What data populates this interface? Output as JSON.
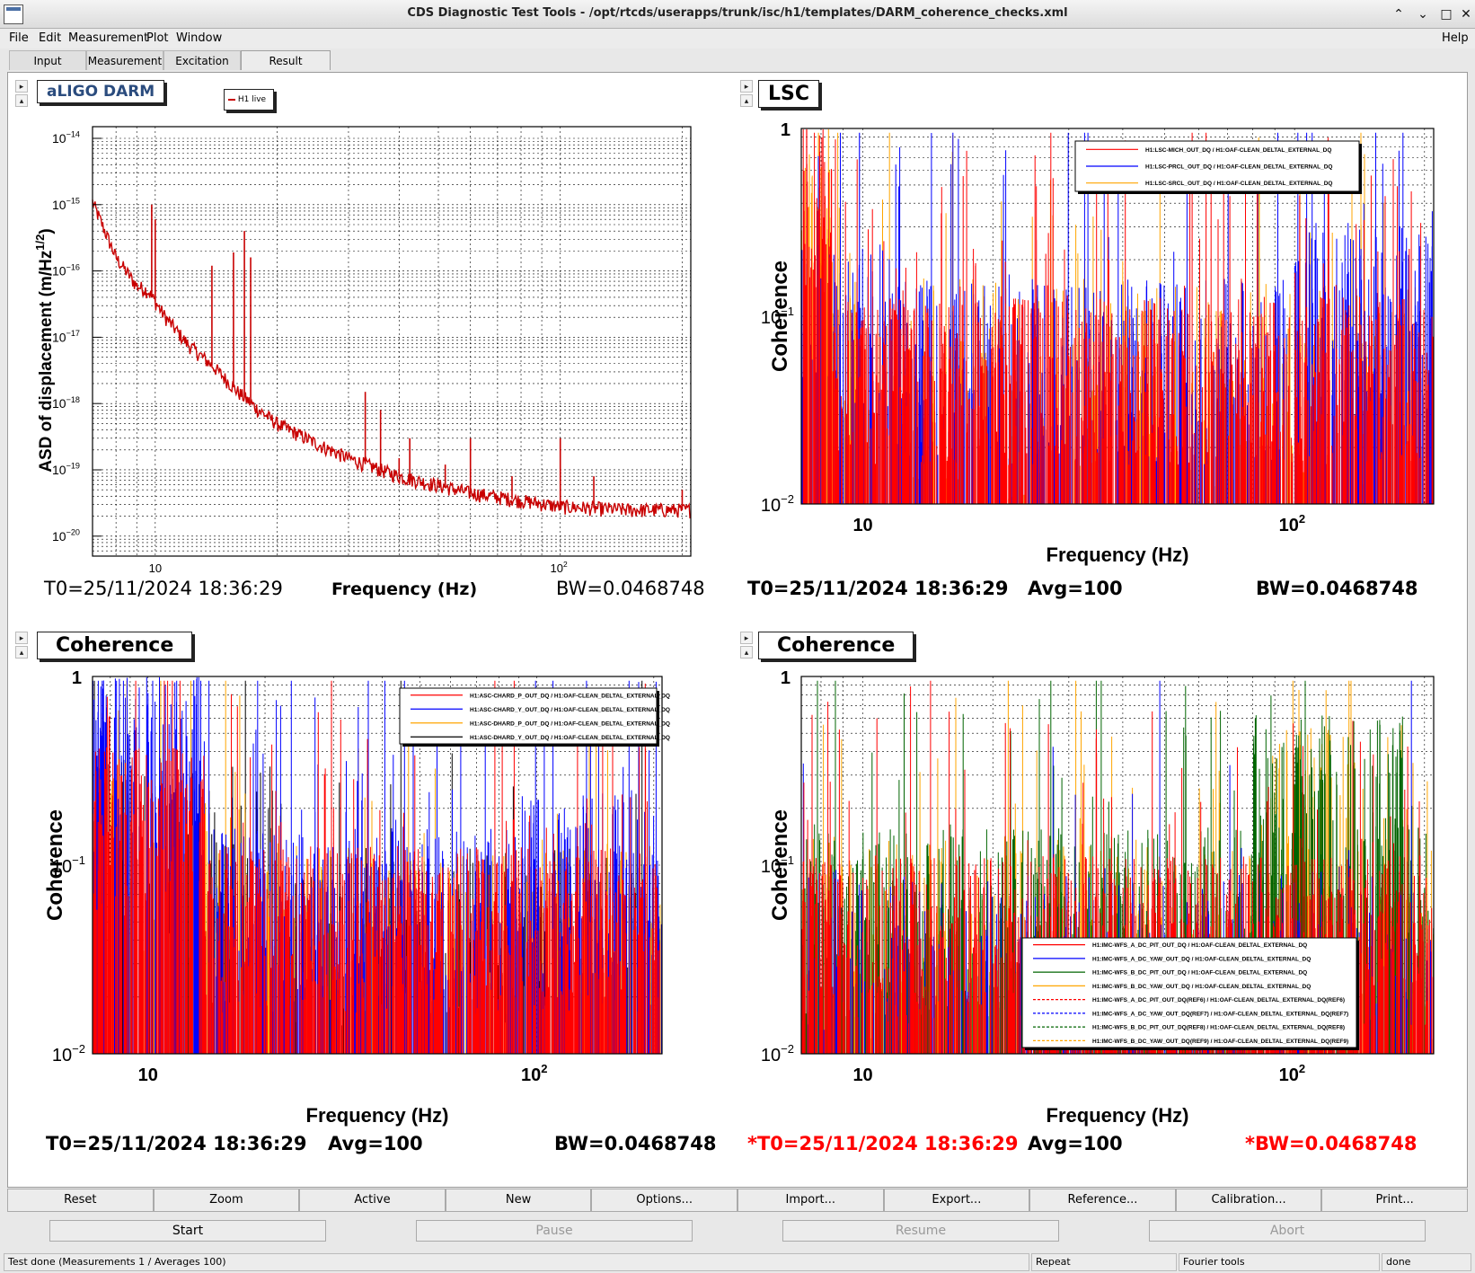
{
  "window": {
    "title": "CDS Diagnostic Test Tools - /opt/rtcds/userapps/trunk/isc/h1/templates/DARM_coherence_checks.xml"
  },
  "menu": {
    "file": "File",
    "edit": "Edit",
    "measurement": "Measurement",
    "plot": "Plot",
    "window": "Window",
    "help": "Help"
  },
  "tabs": [
    "Input",
    "Measurement",
    "Excitation",
    "Result"
  ],
  "pads": {
    "darm": {
      "title": "aLIGO DARM",
      "legend": "H1 live",
      "ylabel": "ASD of displacement (m/Hz",
      "ylabel_exp": "1/2",
      "ylabel_end": ")",
      "yticks": [
        "10",
        "10",
        "10",
        "10",
        "10",
        "10",
        "10"
      ],
      "yexps": [
        "−14",
        "−15",
        "−16",
        "−17",
        "−18",
        "−19",
        "−20"
      ],
      "xtick10": "10",
      "xtick100": "10",
      "xtick100exp": "2",
      "t0": "T0=25/11/2024 18:36:29",
      "xlabel": "Frequency (Hz)",
      "bw": "BW=0.0468748"
    },
    "lsc": {
      "title": "LSC",
      "legend": [
        "H1:LSC-MICH_OUT_DQ / H1:OAF-CLEAN_DELTAL_EXTERNAL_DQ",
        "H1:LSC-PRCL_OUT_DQ / H1:OAF-CLEAN_DELTAL_EXTERNAL_DQ",
        "H1:LSC-SRCL_OUT_DQ / H1:OAF-CLEAN_DELTAL_EXTERNAL_DQ"
      ],
      "ylabel": "Coherence",
      "xlabel": "Frequency (Hz)",
      "t0": "T0=25/11/2024 18:36:29",
      "avg": "Avg=100",
      "bw": "BW=0.0468748"
    },
    "asc": {
      "title": "Coherence",
      "legend": [
        "H1:ASC-CHARD_P_OUT_DQ / H1:OAF-CLEAN_DELTAL_EXTERNAL_DQ",
        "H1:ASC-CHARD_Y_OUT_DQ / H1:OAF-CLEAN_DELTAL_EXTERNAL_DQ",
        "H1:ASC-DHARD_P_OUT_DQ / H1:OAF-CLEAN_DELTAL_EXTERNAL_DQ",
        "H1:ASC-DHARD_Y_OUT_DQ / H1:OAF-CLEAN_DELTAL_EXTERNAL_DQ"
      ],
      "ylabel": "Coherence",
      "xlabel": "Frequency (Hz)",
      "t0": "T0=25/11/2024 18:36:29",
      "avg": "Avg=100",
      "bw": "BW=0.0468748"
    },
    "imc": {
      "title": "Coherence",
      "legend": [
        "H1:IMC-WFS_A_DC_PIT_OUT_DQ / H1:OAF-CLEAN_DELTAL_EXTERNAL_DQ",
        "H1:IMC-WFS_A_DC_YAW_OUT_DQ / H1:OAF-CLEAN_DELTAL_EXTERNAL_DQ",
        "H1:IMC-WFS_B_DC_PIT_OUT_DQ / H1:OAF-CLEAN_DELTAL_EXTERNAL_DQ",
        "H1:IMC-WFS_B_DC_YAW_OUT_DQ / H1:OAF-CLEAN_DELTAL_EXTERNAL_DQ",
        "H1:IMC-WFS_A_DC_PIT_OUT_DQ(REF6) / H1:OAF-CLEAN_DELTAL_EXTERNAL_DQ(REF6)",
        "H1:IMC-WFS_A_DC_YAW_OUT_DQ(REF7) / H1:OAF-CLEAN_DELTAL_EXTERNAL_DQ(REF7)",
        "H1:IMC-WFS_B_DC_PIT_OUT_DQ(REF8) / H1:OAF-CLEAN_DELTAL_EXTERNAL_DQ(REF8)",
        "H1:IMC-WFS_B_DC_YAW_OUT_DQ(REF9) / H1:OAF-CLEAN_DELTAL_EXTERNAL_DQ(REF9)"
      ],
      "ylabel": "Coherence",
      "xlabel": "Frequency (Hz)",
      "t0": "*T0=25/11/2024 18:36:29",
      "avg": "Avg=100",
      "bw": "*BW=0.0468748"
    },
    "coh_ticks": {
      "y1": "1",
      "y01": "10",
      "y01exp": "−1",
      "y001": "10",
      "y001exp": "−2",
      "x10": "10",
      "x100": "10",
      "x100exp": "2"
    }
  },
  "colors": {
    "red": "#ff0000",
    "blue": "#0000ff",
    "orange": "#ffa500",
    "black": "#000000",
    "green": "#006400",
    "darm_red": "#c80000",
    "ref_red": "#ff0000"
  },
  "toolbar": [
    "Reset",
    "Zoom",
    "Active",
    "New",
    "Options...",
    "Import...",
    "Export...",
    "Reference...",
    "Calibration...",
    "Print..."
  ],
  "run": {
    "start": "Start",
    "pause": "Pause",
    "resume": "Resume",
    "abort": "Abort"
  },
  "status": {
    "main": "Test done (Measurements 1 / Averages 100)",
    "repeat": "Repeat",
    "fourier": "Fourier tools",
    "done": "done"
  },
  "chart_data": [
    {
      "type": "line",
      "title": "aLIGO DARM",
      "xlabel": "Frequency (Hz)",
      "ylabel": "ASD of displacement (m/Hz^1/2)",
      "xscale": "log",
      "yscale": "log",
      "xlim": [
        7,
        210
      ],
      "ylim": [
        5e-21,
        1.5e-14
      ],
      "series": [
        {
          "name": "H1 live",
          "x": [
            7,
            7.5,
            8,
            8.5,
            9,
            9.5,
            10,
            10.2,
            11,
            12,
            13,
            14,
            14.5,
            15,
            16,
            17,
            18,
            20,
            22,
            25,
            30,
            35,
            40,
            50,
            60,
            70,
            80,
            100,
            120,
            150,
            180,
            200,
            210
          ],
          "y": [
            1.1e-15,
            3e-16,
            1.5e-16,
            8e-17,
            6e-17,
            5e-17,
            1e-15,
            3e-17,
            1.5e-17,
            6e-18,
            4e-18,
            2.5e-18,
            1.2e-16,
            1.5e-18,
            1.1e-18,
            3e-16,
            1e-16,
            5e-19,
            3e-19,
            2e-19,
            1.3e-19,
            1e-19,
            8e-20,
            5.5e-20,
            4.5e-20,
            3.8e-20,
            3.2e-20,
            2.8e-20,
            2.7e-20,
            2.5e-20,
            2.5e-20,
            2.6e-20,
            2.5e-20
          ]
        }
      ]
    },
    {
      "type": "line",
      "title": "LSC",
      "xlabel": "Frequency (Hz)",
      "ylabel": "Coherence",
      "xscale": "log",
      "yscale": "log",
      "xlim": [
        7,
        210
      ],
      "ylim": [
        0.01,
        1
      ],
      "series": [
        {
          "name": "H1:LSC-MICH_OUT_DQ / H1:OAF-CLEAN_DELTAL_EXTERNAL_DQ",
          "x": [
            7,
            10,
            20,
            50,
            100,
            200
          ],
          "y": [
            0.8,
            0.08,
            0.05,
            0.04,
            0.05,
            0.06
          ]
        },
        {
          "name": "H1:LSC-PRCL_OUT_DQ / H1:OAF-CLEAN_DELTAL_EXTERNAL_DQ",
          "x": [
            7,
            10,
            20,
            50,
            100,
            200
          ],
          "y": [
            0.05,
            0.15,
            0.08,
            0.1,
            0.15,
            0.2
          ]
        },
        {
          "name": "H1:LSC-SRCL_OUT_DQ / H1:OAF-CLEAN_DELTAL_EXTERNAL_DQ",
          "x": [
            7,
            10,
            20,
            50,
            100,
            200
          ],
          "y": [
            0.8,
            0.1,
            0.06,
            0.05,
            0.05,
            0.05
          ]
        }
      ]
    },
    {
      "type": "line",
      "title": "Coherence",
      "xlabel": "Frequency (Hz)",
      "ylabel": "Coherence",
      "xscale": "log",
      "yscale": "log",
      "xlim": [
        7,
        210
      ],
      "ylim": [
        0.01,
        1
      ],
      "series": [
        {
          "name": "H1:ASC-CHARD_P_OUT_DQ / H1:OAF-CLEAN_DELTAL_EXTERNAL_DQ",
          "x": [
            7,
            10,
            20,
            50,
            100,
            200
          ],
          "y": [
            0.3,
            0.2,
            0.05,
            0.04,
            0.05,
            0.06
          ]
        },
        {
          "name": "H1:ASC-CHARD_Y_OUT_DQ / H1:OAF-CLEAN_DELTAL_EXTERNAL_DQ",
          "x": [
            7,
            10,
            20,
            50,
            100,
            200
          ],
          "y": [
            0.4,
            0.6,
            0.1,
            0.06,
            0.08,
            0.1
          ]
        },
        {
          "name": "H1:ASC-DHARD_P_OUT_DQ / H1:OAF-CLEAN_DELTAL_EXTERNAL_DQ",
          "x": [
            7,
            10,
            20,
            50,
            100,
            200
          ],
          "y": [
            0.2,
            0.15,
            0.05,
            0.04,
            0.04,
            0.04
          ]
        },
        {
          "name": "H1:ASC-DHARD_Y_OUT_DQ / H1:OAF-CLEAN_DELTAL_EXTERNAL_DQ",
          "x": [
            7,
            10,
            20,
            50,
            100,
            200
          ],
          "y": [
            0.15,
            0.2,
            0.05,
            0.04,
            0.04,
            0.04
          ]
        }
      ]
    },
    {
      "type": "line",
      "title": "Coherence",
      "xlabel": "Frequency (Hz)",
      "ylabel": "Coherence",
      "xscale": "log",
      "yscale": "log",
      "xlim": [
        7,
        210
      ],
      "ylim": [
        0.01,
        1
      ],
      "series": [
        {
          "name": "H1:IMC-WFS_A_DC_PIT_OUT_DQ / H1:OAF-CLEAN_DELTAL_EXTERNAL_DQ",
          "x": [
            7,
            10,
            20,
            50,
            100,
            200
          ],
          "y": [
            0.05,
            0.04,
            0.04,
            0.04,
            0.05,
            0.06
          ]
        },
        {
          "name": "H1:IMC-WFS_A_DC_YAW_OUT_DQ / H1:OAF-CLEAN_DELTAL_EXTERNAL_DQ",
          "x": [
            7,
            10,
            20,
            50,
            100,
            200
          ],
          "y": [
            0.04,
            0.04,
            0.04,
            0.04,
            0.04,
            0.04
          ]
        },
        {
          "name": "H1:IMC-WFS_B_DC_PIT_OUT_DQ / H1:OAF-CLEAN_DELTAL_EXTERNAL_DQ",
          "x": [
            7,
            10,
            20,
            50,
            100,
            200
          ],
          "y": [
            0.1,
            0.15,
            0.08,
            0.08,
            0.3,
            0.1
          ]
        },
        {
          "name": "H1:IMC-WFS_B_DC_YAW_OUT_DQ / H1:OAF-CLEAN_DELTAL_EXTERNAL_DQ",
          "x": [
            7,
            10,
            20,
            50,
            100,
            200
          ],
          "y": [
            0.1,
            0.15,
            0.06,
            0.05,
            0.2,
            0.08
          ]
        },
        {
          "name": "H1:IMC-WFS_A_DC_PIT_OUT_DQ(REF6) / H1:OAF-CLEAN_DELTAL_EXTERNAL_DQ(REF6)",
          "x": [
            7,
            10,
            20,
            50,
            100,
            200
          ],
          "y": [
            0.05,
            0.04,
            0.04,
            0.04,
            0.05,
            0.05
          ]
        },
        {
          "name": "H1:IMC-WFS_A_DC_YAW_OUT_DQ(REF7) / H1:OAF-CLEAN_DELTAL_EXTERNAL_DQ(REF7)",
          "x": [
            7,
            10,
            20,
            50,
            100,
            200
          ],
          "y": [
            0.04,
            0.04,
            0.04,
            0.04,
            0.04,
            0.04
          ]
        },
        {
          "name": "H1:IMC-WFS_B_DC_PIT_OUT_DQ(REF8) / H1:OAF-CLEAN_DELTAL_EXTERNAL_DQ(REF8)",
          "x": [
            7,
            10,
            20,
            50,
            100,
            200
          ],
          "y": [
            0.1,
            0.5,
            0.08,
            0.08,
            0.3,
            0.1
          ]
        },
        {
          "name": "H1:IMC-WFS_B_DC_YAW_OUT_DQ(REF9) / H1:OAF-CLEAN_DELTAL_EXTERNAL_DQ(REF9)",
          "x": [
            7,
            10,
            20,
            50,
            100,
            200
          ],
          "y": [
            0.1,
            0.2,
            0.06,
            0.05,
            0.25,
            0.08
          ]
        }
      ]
    }
  ]
}
